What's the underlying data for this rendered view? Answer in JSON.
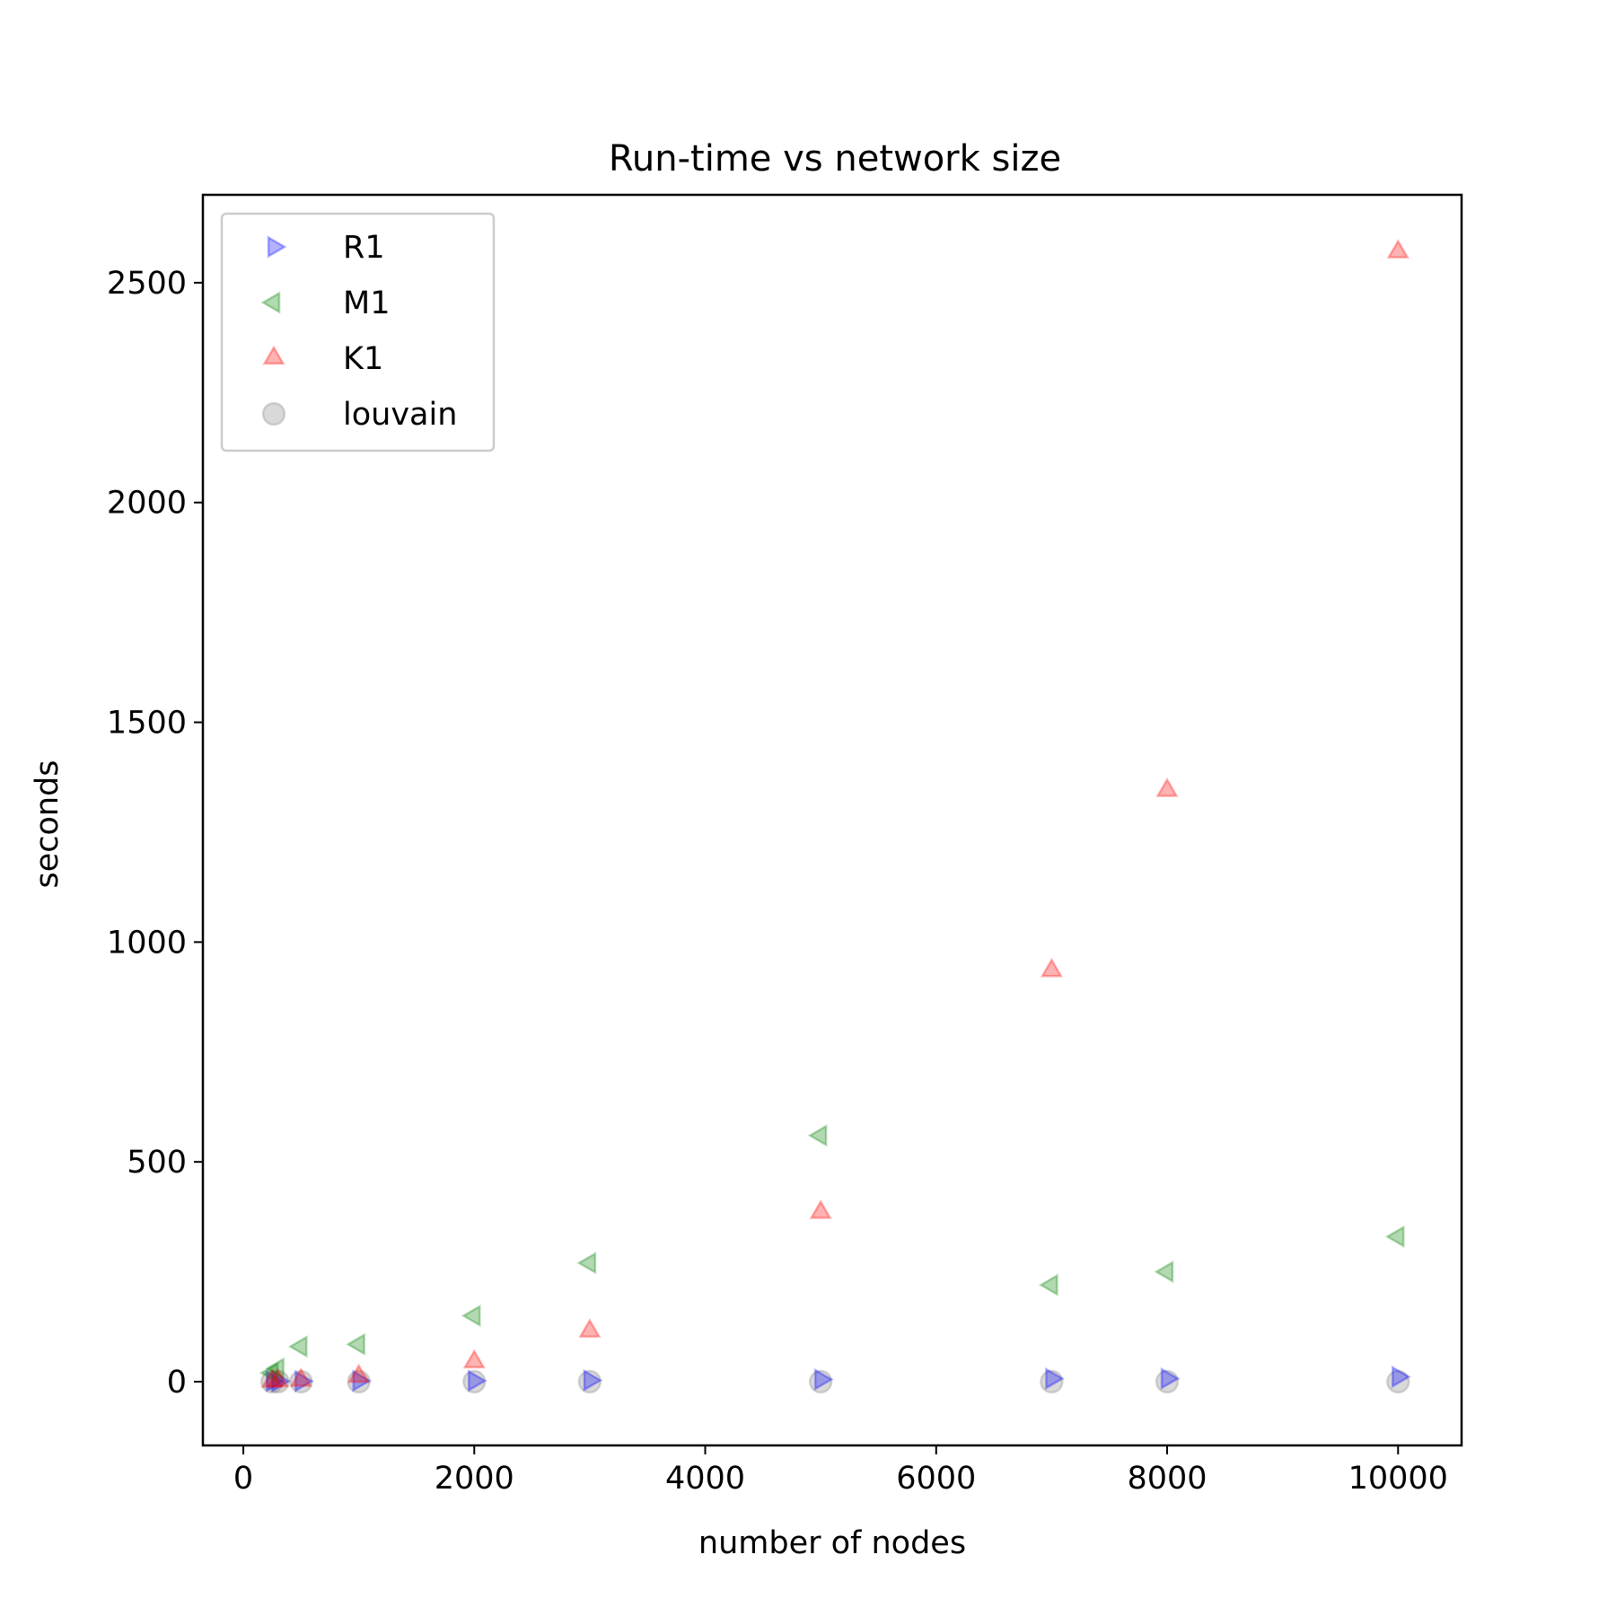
{
  "chart_data": {
    "type": "scatter",
    "title": "Run-time vs network size",
    "xlabel": "number of nodes",
    "ylabel": "seconds",
    "xlim": [
      -350,
      10550
    ],
    "ylim": [
      -145,
      2700
    ],
    "xticks": [
      0,
      2000,
      4000,
      6000,
      8000,
      10000
    ],
    "yticks": [
      0,
      500,
      1000,
      1500,
      2000,
      2500
    ],
    "legend_position": "upper-left",
    "grid": false,
    "series": [
      {
        "name": "R1",
        "marker": "triangle-right",
        "color": "#0000ff",
        "x": [
          250,
          300,
          500,
          1000,
          2000,
          3000,
          5000,
          7000,
          8000,
          10000
        ],
        "y": [
          1,
          1,
          1,
          2,
          2,
          3,
          5,
          7,
          7,
          11
        ]
      },
      {
        "name": "M1",
        "marker": "triangle-left",
        "color": "#008000",
        "x": [
          250,
          300,
          500,
          1000,
          2000,
          3000,
          5000,
          7000,
          8000,
          10000
        ],
        "y": [
          20,
          30,
          80,
          85,
          150,
          270,
          560,
          220,
          250,
          330
        ]
      },
      {
        "name": "K1",
        "marker": "triangle-up",
        "color": "#ff0000",
        "x": [
          250,
          300,
          500,
          1000,
          2000,
          3000,
          5000,
          7000,
          8000,
          10000
        ],
        "y": [
          1,
          2,
          3,
          12,
          45,
          115,
          385,
          935,
          1345,
          2570
        ]
      },
      {
        "name": "louvain",
        "marker": "circle",
        "color": "#808080",
        "x": [
          250,
          300,
          500,
          1000,
          2000,
          3000,
          5000,
          7000,
          8000,
          10000
        ],
        "y": [
          0,
          0,
          0,
          0,
          0,
          0,
          0,
          0,
          0,
          0
        ]
      }
    ]
  }
}
